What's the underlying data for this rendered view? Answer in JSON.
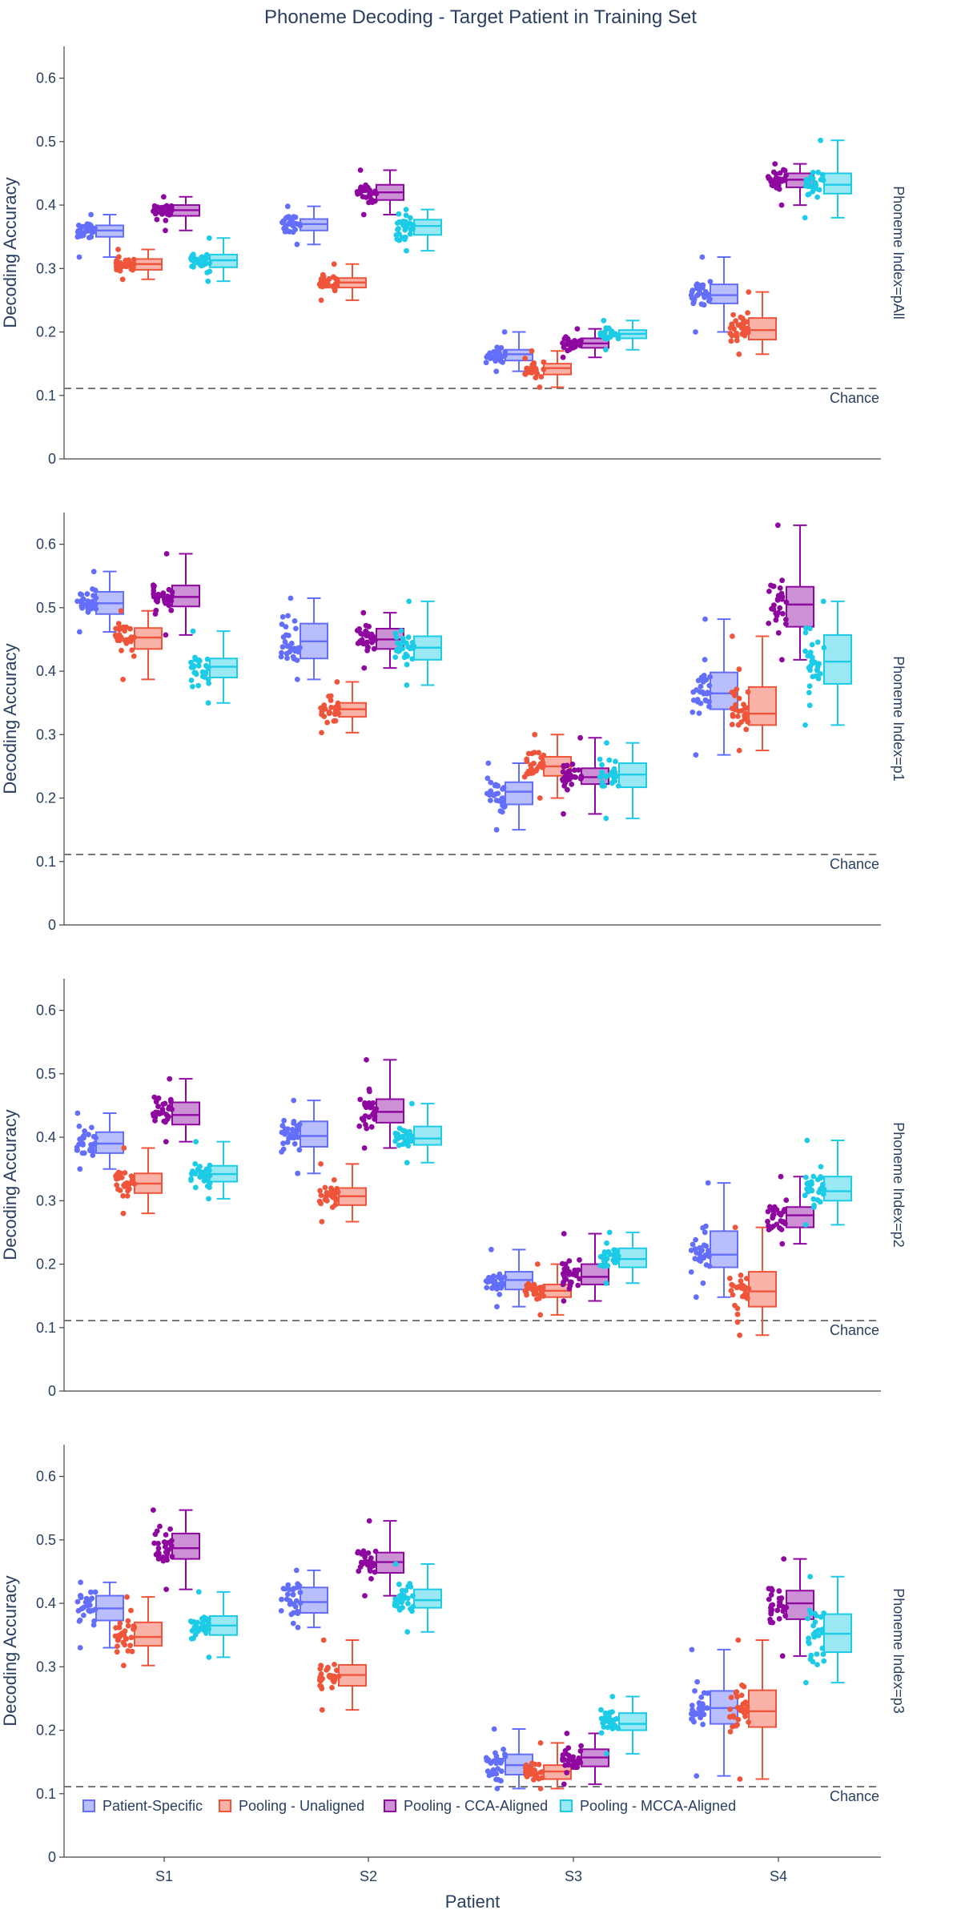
{
  "chart_data": {
    "type": "box",
    "title": "Phoneme Decoding - Target Patient in Training Set",
    "xlabel": "Patient",
    "ylabel": "Decoding Accuracy",
    "ylim": [
      0,
      0.65
    ],
    "yticks": [
      0,
      0.1,
      0.2,
      0.3,
      0.4,
      0.5,
      0.6
    ],
    "ytick_labels": [
      "0",
      "0.1",
      "0.2",
      "0.3",
      "0.4",
      "0.5",
      "0.6"
    ],
    "categories": [
      "S1",
      "S2",
      "S3",
      "S4"
    ],
    "legend_position": "bottom-left inside last panel",
    "chance": {
      "value": 0.111,
      "label": "Chance"
    },
    "series": [
      {
        "name": "Patient-Specific",
        "color": "#636efa"
      },
      {
        "name": "Pooling - Unaligned",
        "color": "#ef553b"
      },
      {
        "name": "Pooling - CCA-Aligned",
        "color": "#8e08a0"
      },
      {
        "name": "Pooling - MCCA-Aligned",
        "color": "#1ccbe6"
      }
    ],
    "facets": [
      {
        "label": "Phoneme Index=pAll",
        "boxes": [
          [
            [
              0.318,
              0.35,
              0.36,
              0.368,
              0.385
            ],
            [
              0.283,
              0.298,
              0.307,
              0.315,
              0.33
            ],
            [
              0.36,
              0.383,
              0.392,
              0.4,
              0.413
            ],
            [
              0.28,
              0.302,
              0.313,
              0.322,
              0.348
            ]
          ],
          [
            [
              0.338,
              0.36,
              0.37,
              0.378,
              0.398
            ],
            [
              0.25,
              0.27,
              0.278,
              0.285,
              0.307
            ],
            [
              0.385,
              0.408,
              0.42,
              0.432,
              0.455
            ],
            [
              0.328,
              0.353,
              0.367,
              0.377,
              0.393
            ]
          ],
          [
            [
              0.138,
              0.155,
              0.165,
              0.172,
              0.2
            ],
            [
              0.113,
              0.133,
              0.143,
              0.15,
              0.17
            ],
            [
              0.16,
              0.175,
              0.182,
              0.19,
              0.205
            ],
            [
              0.172,
              0.19,
              0.197,
              0.203,
              0.218
            ]
          ],
          [
            [
              0.2,
              0.245,
              0.258,
              0.275,
              0.318
            ],
            [
              0.165,
              0.188,
              0.203,
              0.222,
              0.263
            ],
            [
              0.4,
              0.428,
              0.44,
              0.45,
              0.465
            ],
            [
              0.38,
              0.418,
              0.432,
              0.45,
              0.502
            ]
          ]
        ]
      },
      {
        "label": "Phoneme Index=p1",
        "boxes": [
          [
            [
              0.462,
              0.49,
              0.507,
              0.525,
              0.557
            ],
            [
              0.387,
              0.435,
              0.453,
              0.468,
              0.495
            ],
            [
              0.457,
              0.502,
              0.517,
              0.535,
              0.585
            ],
            [
              0.35,
              0.39,
              0.407,
              0.42,
              0.463
            ]
          ],
          [
            [
              0.387,
              0.42,
              0.447,
              0.475,
              0.515
            ],
            [
              0.303,
              0.328,
              0.34,
              0.35,
              0.383
            ],
            [
              0.405,
              0.435,
              0.45,
              0.467,
              0.492
            ],
            [
              0.378,
              0.418,
              0.437,
              0.455,
              0.51
            ]
          ],
          [
            [
              0.15,
              0.19,
              0.21,
              0.225,
              0.255
            ],
            [
              0.2,
              0.235,
              0.25,
              0.265,
              0.3
            ],
            [
              0.175,
              0.222,
              0.233,
              0.247,
              0.295
            ],
            [
              0.168,
              0.217,
              0.237,
              0.255,
              0.287
            ]
          ],
          [
            [
              0.268,
              0.34,
              0.365,
              0.398,
              0.482
            ],
            [
              0.275,
              0.315,
              0.333,
              0.375,
              0.455
            ],
            [
              0.418,
              0.47,
              0.505,
              0.533,
              0.63
            ],
            [
              0.315,
              0.38,
              0.415,
              0.457,
              0.51
            ]
          ]
        ]
      },
      {
        "label": "Phoneme Index=p2",
        "boxes": [
          [
            [
              0.35,
              0.375,
              0.39,
              0.408,
              0.438
            ],
            [
              0.28,
              0.312,
              0.327,
              0.343,
              0.383
            ],
            [
              0.393,
              0.42,
              0.435,
              0.455,
              0.492
            ],
            [
              0.303,
              0.33,
              0.342,
              0.355,
              0.393
            ]
          ],
          [
            [
              0.343,
              0.385,
              0.402,
              0.425,
              0.458
            ],
            [
              0.267,
              0.293,
              0.307,
              0.32,
              0.358
            ],
            [
              0.383,
              0.423,
              0.44,
              0.46,
              0.522
            ],
            [
              0.36,
              0.388,
              0.398,
              0.417,
              0.453
            ]
          ],
          [
            [
              0.133,
              0.16,
              0.175,
              0.188,
              0.223
            ],
            [
              0.12,
              0.148,
              0.158,
              0.168,
              0.2
            ],
            [
              0.142,
              0.168,
              0.18,
              0.2,
              0.248
            ],
            [
              0.17,
              0.195,
              0.208,
              0.225,
              0.25
            ]
          ],
          [
            [
              0.148,
              0.195,
              0.215,
              0.252,
              0.328
            ],
            [
              0.088,
              0.133,
              0.157,
              0.188,
              0.258
            ],
            [
              0.232,
              0.258,
              0.277,
              0.29,
              0.338
            ],
            [
              0.262,
              0.3,
              0.315,
              0.338,
              0.395
            ]
          ]
        ]
      },
      {
        "label": "Phoneme Index=p3",
        "boxes": [
          [
            [
              0.33,
              0.373,
              0.392,
              0.412,
              0.433
            ],
            [
              0.302,
              0.333,
              0.347,
              0.37,
              0.41
            ],
            [
              0.422,
              0.47,
              0.487,
              0.51,
              0.547
            ],
            [
              0.315,
              0.35,
              0.365,
              0.38,
              0.418
            ]
          ],
          [
            [
              0.362,
              0.385,
              0.402,
              0.425,
              0.452
            ],
            [
              0.232,
              0.27,
              0.287,
              0.303,
              0.342
            ],
            [
              0.412,
              0.448,
              0.465,
              0.48,
              0.53
            ],
            [
              0.355,
              0.393,
              0.405,
              0.422,
              0.462
            ]
          ],
          [
            [
              0.108,
              0.13,
              0.145,
              0.162,
              0.202
            ],
            [
              0.108,
              0.123,
              0.135,
              0.145,
              0.18
            ],
            [
              0.115,
              0.143,
              0.157,
              0.17,
              0.195
            ],
            [
              0.163,
              0.2,
              0.21,
              0.227,
              0.253
            ]
          ],
          [
            [
              0.128,
              0.21,
              0.235,
              0.262,
              0.327
            ],
            [
              0.123,
              0.205,
              0.23,
              0.263,
              0.342
            ],
            [
              0.317,
              0.375,
              0.4,
              0.42,
              0.47
            ],
            [
              0.275,
              0.323,
              0.352,
              0.383,
              0.442
            ]
          ]
        ]
      }
    ]
  }
}
